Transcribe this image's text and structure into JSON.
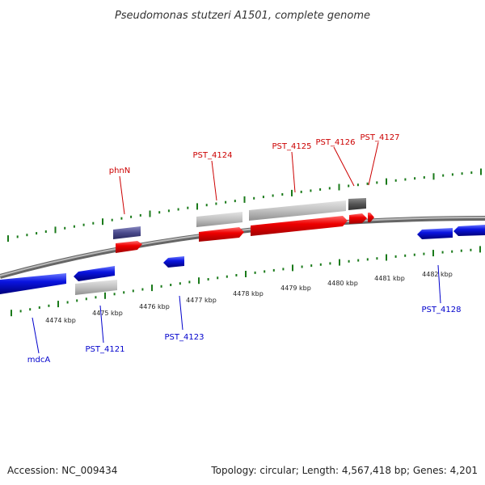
{
  "title": "Pseudomonas stutzeri A1501, complete genome",
  "footer": {
    "accession": "Accession: NC_009434",
    "summary": "Topology: circular; Length: 4,567,418 bp; Genes: 4,201"
  },
  "kbp_labels": [
    "4474 kbp",
    "4475 kbp",
    "4476 kbp",
    "4477 kbp",
    "4478 kbp",
    "4479 kbp",
    "4480 kbp",
    "4481 kbp",
    "4482 kbp"
  ],
  "gene_labels_top": [
    "phnN",
    "PST_4124",
    "PST_4125",
    "PST_4126",
    "PST_4127"
  ],
  "gene_labels_bottom": [
    "mdcA",
    "PST_4121",
    "PST_4123",
    "PST_4128"
  ],
  "colors": {
    "forward_cds": "#ee0000",
    "reverse_cds": "#0a14e0",
    "gene_grey": "#c0c0c0",
    "dark_feature": "#4a4a8c",
    "tick": "#1a7a1a",
    "backbone": "#8a8a8a"
  }
}
